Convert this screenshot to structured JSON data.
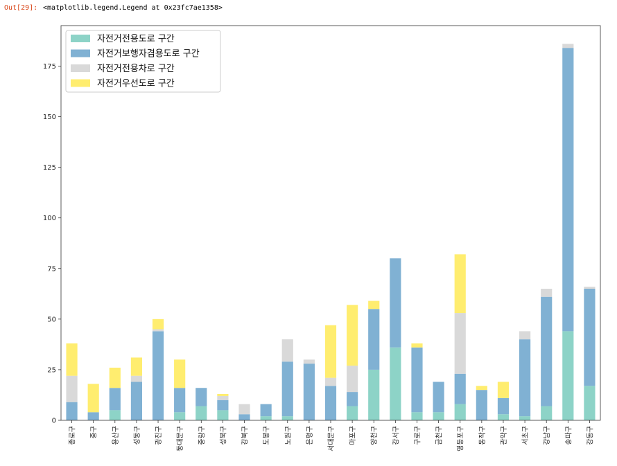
{
  "cell": {
    "prompt": "Out[29]:",
    "output": "<matplotlib.legend.Legend at 0x23fc7ae1358>"
  },
  "colors": {
    "s1": "#8dd3c7",
    "s2": "#80b1d3",
    "s3": "#d9d9d9",
    "s4": "#ffed6f"
  },
  "chart_data": {
    "type": "bar",
    "stacked": true,
    "title": "",
    "xlabel": "",
    "ylabel": "",
    "ylim": [
      0,
      195
    ],
    "yticks": [
      0,
      25,
      50,
      75,
      100,
      125,
      150,
      175
    ],
    "legend_position": "top-left",
    "grid": false,
    "categories": [
      "종로구",
      "중구",
      "용산구",
      "성동구",
      "광진구",
      "동대문구",
      "중랑구",
      "성북구",
      "강북구",
      "도봉구",
      "노원구",
      "은평구",
      "서대문구",
      "마포구",
      "양천구",
      "강서구",
      "구로구",
      "금천구",
      "영등포구",
      "동작구",
      "관악구",
      "서초구",
      "강남구",
      "송파구",
      "강동구"
    ],
    "series": [
      {
        "name": "자전거전용도로 구간",
        "color": "#8dd3c7",
        "values": [
          0,
          0,
          5,
          0,
          0,
          4,
          7,
          5,
          0,
          2,
          2,
          0,
          0,
          7,
          25,
          36,
          4,
          4,
          8,
          0,
          3,
          2,
          7,
          44,
          17
        ]
      },
      {
        "name": "자전거보행자겸용도로 구간",
        "color": "#80b1d3",
        "values": [
          9,
          4,
          11,
          19,
          44,
          12,
          9,
          5,
          3,
          6,
          27,
          28,
          17,
          7,
          30,
          44,
          32,
          15,
          15,
          15,
          8,
          38,
          54,
          140,
          48
        ]
      },
      {
        "name": "자전거전용차로 구간",
        "color": "#d9d9d9",
        "values": [
          13,
          0,
          0,
          3,
          1,
          0,
          0,
          2,
          5,
          0,
          11,
          2,
          4,
          13,
          0,
          0,
          0,
          0,
          30,
          0,
          0,
          4,
          4,
          2,
          1
        ]
      },
      {
        "name": "자전거우선도로 구간",
        "color": "#ffed6f",
        "values": [
          16,
          14,
          10,
          9,
          5,
          14,
          0,
          1,
          0,
          0,
          0,
          0,
          26,
          30,
          4,
          0,
          2,
          0,
          29,
          2,
          8,
          0,
          0,
          0,
          0
        ]
      }
    ]
  }
}
